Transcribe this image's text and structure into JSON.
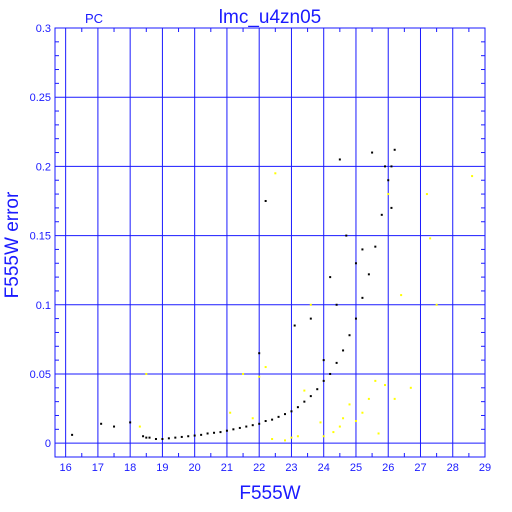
{
  "chart_data": {
    "type": "scatter",
    "title": "lmc_u4zn05",
    "detector_label": "PC",
    "xlabel": "F555W",
    "ylabel": "F555W error",
    "xlim": [
      15.67,
      29
    ],
    "ylim": [
      -0.01,
      0.3
    ],
    "xticks": [
      16,
      17,
      18,
      19,
      20,
      21,
      22,
      23,
      24,
      25,
      26,
      27,
      28,
      29
    ],
    "yticks": [
      0,
      0.05,
      0.1,
      0.15,
      0.2,
      0.25,
      0.3
    ],
    "ytick_labels": [
      "0",
      "0.05",
      "0.1",
      "0.15",
      "0.2",
      "0.25",
      "0.3"
    ],
    "grid": true,
    "colors": {
      "axes": "#1a1aff",
      "series_black": "#000000",
      "series_yellow": "#ffff00"
    },
    "series": [
      {
        "color": "black",
        "points": [
          [
            16.2,
            0.006
          ],
          [
            17.1,
            0.014
          ],
          [
            17.5,
            0.012
          ],
          [
            18.0,
            0.015
          ],
          [
            18.4,
            0.005
          ],
          [
            18.5,
            0.004
          ],
          [
            18.6,
            0.004
          ],
          [
            18.8,
            0.003
          ],
          [
            19.0,
            0.003
          ],
          [
            19.2,
            0.0035
          ],
          [
            19.4,
            0.004
          ],
          [
            19.6,
            0.0045
          ],
          [
            19.8,
            0.005
          ],
          [
            20.0,
            0.0055
          ],
          [
            20.2,
            0.006
          ],
          [
            20.4,
            0.007
          ],
          [
            20.6,
            0.0075
          ],
          [
            20.8,
            0.008
          ],
          [
            21.0,
            0.009
          ],
          [
            21.2,
            0.01
          ],
          [
            21.4,
            0.011
          ],
          [
            21.6,
            0.012
          ],
          [
            21.8,
            0.013
          ],
          [
            22.0,
            0.014
          ],
          [
            22.2,
            0.016
          ],
          [
            22.4,
            0.017
          ],
          [
            22.6,
            0.019
          ],
          [
            22.8,
            0.021
          ],
          [
            23.0,
            0.023
          ],
          [
            23.2,
            0.026
          ],
          [
            23.4,
            0.03
          ],
          [
            23.6,
            0.034
          ],
          [
            23.8,
            0.039
          ],
          [
            24.0,
            0.045
          ],
          [
            24.2,
            0.05
          ],
          [
            24.4,
            0.058
          ],
          [
            24.6,
            0.067
          ],
          [
            24.8,
            0.078
          ],
          [
            25.0,
            0.09
          ],
          [
            25.2,
            0.105
          ],
          [
            25.4,
            0.122
          ],
          [
            25.6,
            0.142
          ],
          [
            25.8,
            0.165
          ],
          [
            26.0,
            0.19
          ],
          [
            26.1,
            0.2
          ],
          [
            26.2,
            0.212
          ],
          [
            22.0,
            0.065
          ],
          [
            22.2,
            0.175
          ],
          [
            23.1,
            0.085
          ],
          [
            23.6,
            0.09
          ],
          [
            24.0,
            0.06
          ],
          [
            24.2,
            0.12
          ],
          [
            24.4,
            0.1
          ],
          [
            24.5,
            0.205
          ],
          [
            24.7,
            0.15
          ],
          [
            25.0,
            0.13
          ],
          [
            25.2,
            0.14
          ],
          [
            25.5,
            0.21
          ],
          [
            25.9,
            0.2
          ],
          [
            26.1,
            0.17
          ]
        ]
      },
      {
        "color": "yellow",
        "points": [
          [
            18.3,
            0.012
          ],
          [
            18.5,
            0.05
          ],
          [
            21.1,
            0.022
          ],
          [
            21.5,
            0.05
          ],
          [
            21.8,
            0.018
          ],
          [
            22.0,
            0.048
          ],
          [
            22.2,
            0.055
          ],
          [
            22.4,
            0.003
          ],
          [
            22.5,
            0.195
          ],
          [
            22.8,
            0.002
          ],
          [
            23.0,
            0.004
          ],
          [
            23.2,
            0.005
          ],
          [
            23.4,
            0.038
          ],
          [
            23.6,
            0.1
          ],
          [
            23.9,
            0.015
          ],
          [
            24.0,
            0.005
          ],
          [
            24.3,
            0.008
          ],
          [
            24.5,
            0.012
          ],
          [
            24.6,
            0.018
          ],
          [
            24.8,
            0.028
          ],
          [
            25.0,
            0.016
          ],
          [
            25.2,
            0.022
          ],
          [
            25.4,
            0.032
          ],
          [
            25.6,
            0.045
          ],
          [
            25.7,
            0.007
          ],
          [
            25.9,
            0.042
          ],
          [
            26.0,
            0.18
          ],
          [
            26.2,
            0.032
          ],
          [
            26.4,
            0.107
          ],
          [
            26.7,
            0.04
          ],
          [
            27.2,
            0.18
          ],
          [
            27.3,
            0.148
          ],
          [
            27.5,
            0.1
          ],
          [
            28.6,
            0.193
          ]
        ]
      }
    ]
  }
}
